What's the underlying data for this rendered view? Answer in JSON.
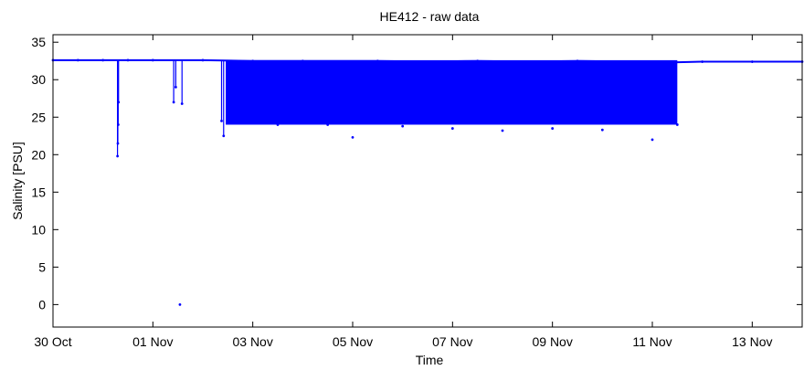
{
  "chart_data": {
    "type": "scatter",
    "title": "HE412 - raw data",
    "xlabel": "Time",
    "ylabel": "Salinity [PSU]",
    "x_type": "date",
    "xlim": [
      "2013-10-30",
      "2013-11-14"
    ],
    "ylim": [
      -3,
      36
    ],
    "grid": false,
    "legend": "none",
    "marker_color": "#0000ff",
    "x_ticks": [
      {
        "date": "2013-10-30",
        "label": "30 Oct"
      },
      {
        "date": "2013-11-01",
        "label": "01 Nov"
      },
      {
        "date": "2013-11-03",
        "label": "03 Nov"
      },
      {
        "date": "2013-11-05",
        "label": "05 Nov"
      },
      {
        "date": "2013-11-07",
        "label": "07 Nov"
      },
      {
        "date": "2013-11-09",
        "label": "09 Nov"
      },
      {
        "date": "2013-11-11",
        "label": "11 Nov"
      },
      {
        "date": "2013-11-13",
        "label": "13 Nov"
      }
    ],
    "y_ticks": [
      0,
      5,
      10,
      15,
      20,
      25,
      30,
      35
    ],
    "series": [
      {
        "points": [
          [
            "2013-10-30 00:00",
            32.6
          ],
          [
            "2013-10-30 12:00",
            32.6
          ],
          [
            "2013-10-31 00:00",
            32.6
          ],
          [
            "2013-10-31 07:00",
            19.8
          ],
          [
            "2013-10-31 07:10",
            21.5
          ],
          [
            "2013-10-31 07:20",
            24.0
          ],
          [
            "2013-10-31 07:30",
            27.0
          ],
          [
            "2013-10-31 12:00",
            32.6
          ],
          [
            "2013-11-01 00:00",
            32.6
          ],
          [
            "2013-11-01 10:00",
            27.0
          ],
          [
            "2013-11-01 11:00",
            29.0
          ],
          [
            "2013-11-01 13:00",
            0.0
          ],
          [
            "2013-11-01 14:00",
            26.8
          ],
          [
            "2013-11-02 00:00",
            32.6
          ],
          [
            "2013-11-02 09:00",
            24.5
          ],
          [
            "2013-11-02 10:00",
            22.5
          ],
          [
            "2013-11-02 12:00",
            29.5
          ],
          [
            "2013-11-02 15:00",
            25.0
          ],
          [
            "2013-11-03 00:00",
            32.5
          ],
          [
            "2013-11-03 12:00",
            24.0
          ],
          [
            "2013-11-04 00:00",
            32.5
          ],
          [
            "2013-11-04 12:00",
            24.0
          ],
          [
            "2013-11-05 00:00",
            22.3
          ],
          [
            "2013-11-05 12:00",
            32.5
          ],
          [
            "2013-11-06 00:00",
            23.8
          ],
          [
            "2013-11-06 12:00",
            32.4
          ],
          [
            "2013-11-07 00:00",
            23.5
          ],
          [
            "2013-11-07 12:00",
            32.5
          ],
          [
            "2013-11-07 16:00",
            31.5
          ],
          [
            "2013-11-08 00:00",
            23.2
          ],
          [
            "2013-11-08 12:00",
            32.4
          ],
          [
            "2013-11-09 00:00",
            23.5
          ],
          [
            "2013-11-09 12:00",
            32.5
          ],
          [
            "2013-11-10 00:00",
            23.3
          ],
          [
            "2013-11-10 07:00",
            31.0
          ],
          [
            "2013-11-10 12:00",
            32.4
          ],
          [
            "2013-11-11 00:00",
            22.0
          ],
          [
            "2013-11-11 08:00",
            32.3
          ],
          [
            "2013-11-11 12:00",
            24.0
          ],
          [
            "2013-11-12 00:00",
            32.4
          ],
          [
            "2013-11-13 00:00",
            32.4
          ],
          [
            "2013-11-14 00:00",
            32.4
          ]
        ],
        "dense_band": {
          "from": "2013-11-02 11:00",
          "to": "2013-11-11 12:00",
          "min": 24,
          "max": 32.6
        }
      }
    ]
  }
}
